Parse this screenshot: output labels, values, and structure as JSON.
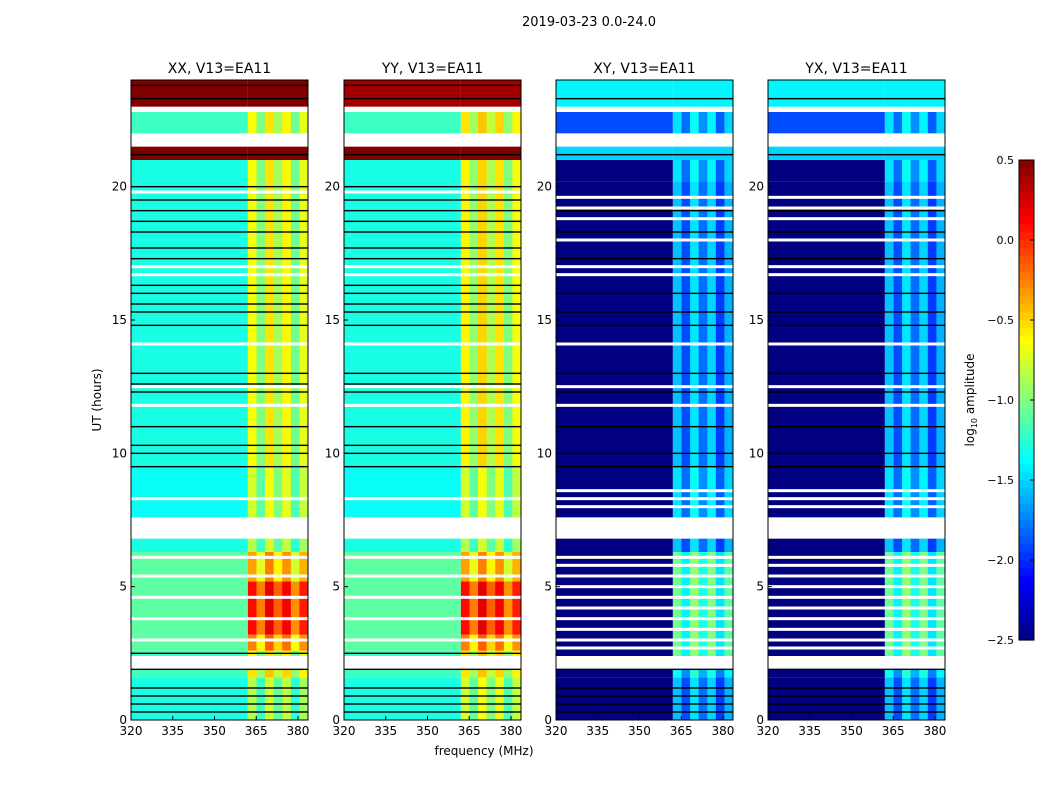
{
  "chart_data": {
    "type": "heatmap",
    "title": "2019-03-23 0.0-24.0",
    "xlabel": "frequency (MHz)",
    "ylabel": "UT (hours)",
    "xlim": [
      320,
      383.6
    ],
    "ylim": [
      0,
      24
    ],
    "xticks": [
      "320",
      "335",
      "350",
      "365",
      "380"
    ],
    "xtick_values": [
      320,
      335,
      350,
      365,
      380
    ],
    "yticks": [
      "0",
      "5",
      "10",
      "15",
      "20"
    ],
    "ytick_values": [
      0,
      5,
      10,
      15,
      20
    ],
    "colorbar": {
      "label": "log10 amplitude",
      "label_main": "log",
      "label_sub": "10",
      "label_rest": " amplitude",
      "range": [
        -2.5,
        0.5
      ],
      "ticks": [
        "0.5",
        "0.0",
        "−0.5",
        "−1.0",
        "−1.5",
        "−2.0",
        "−2.5"
      ],
      "tick_values": [
        0.5,
        0,
        -0.5,
        -1,
        -1.5,
        -2,
        -2.5
      ],
      "colormap": "jet"
    },
    "high_band_start_mhz": 362,
    "column_offsets": [
      0.15,
      -0.2,
      0.25,
      -0.1,
      0.2,
      -0.25,
      0.1
    ],
    "panels": [
      {
        "title": "XX, V13=EA11",
        "bands": [
          [
            0,
            1.6,
            -1.3,
            -1.0
          ],
          [
            1.6,
            1.9,
            -1.2,
            -0.7
          ],
          [
            1.9,
            2.4,
            null,
            null
          ],
          [
            2.4,
            2.6,
            -1.2,
            -0.8
          ],
          [
            2.6,
            3.2,
            -1.1,
            -0.4
          ],
          [
            3.2,
            5.2,
            -1.1,
            -0.05
          ],
          [
            5.2,
            6.3,
            -1.1,
            -0.5
          ],
          [
            6.3,
            6.8,
            -1.3,
            -1.0
          ],
          [
            6.8,
            7.6,
            null,
            null
          ],
          [
            7.6,
            9.5,
            -1.35,
            -0.9
          ],
          [
            9.5,
            21,
            -1.3,
            -0.8
          ],
          [
            21,
            21.5,
            0.5,
            0.5
          ],
          [
            21.5,
            22,
            null,
            null
          ],
          [
            22,
            22.8,
            -1.2,
            -0.8
          ],
          [
            22.8,
            23,
            null,
            null
          ],
          [
            23,
            24,
            0.5,
            0.5
          ]
        ],
        "black_lines": [
          0.3,
          0.6,
          0.9,
          1.2,
          1.9,
          2.5,
          9.5,
          10,
          10.3,
          11,
          12.3,
          12.6,
          13,
          14.8,
          15.3,
          15.6,
          16,
          16.3,
          17.3,
          17.7,
          18.3,
          18.7,
          19.1,
          19.5,
          20,
          21.2,
          23.3,
          23.8
        ],
        "white_lines": [
          2.2,
          3.0,
          3.8,
          4.6,
          5.4,
          6.1,
          7.0,
          7.3,
          8.3,
          11.8,
          12.5,
          14.1,
          16.7,
          17.0,
          19.8
        ]
      },
      {
        "title": "YY, V13=EA11",
        "bands": [
          [
            0,
            1.6,
            -1.3,
            -0.9
          ],
          [
            1.6,
            1.9,
            -1.2,
            -0.7
          ],
          [
            1.9,
            2.4,
            null,
            null
          ],
          [
            2.4,
            2.6,
            -1.2,
            -0.7
          ],
          [
            2.6,
            3.2,
            -1.1,
            -0.4
          ],
          [
            3.2,
            5.2,
            -1.1,
            -0.05
          ],
          [
            5.2,
            6.3,
            -1.1,
            -0.5
          ],
          [
            6.3,
            6.8,
            -1.3,
            -1.0
          ],
          [
            6.8,
            7.6,
            null,
            null
          ],
          [
            7.6,
            9.5,
            -1.35,
            -0.9
          ],
          [
            9.5,
            21,
            -1.3,
            -0.75
          ],
          [
            21,
            21.5,
            0.5,
            0.5
          ],
          [
            21.5,
            22,
            null,
            null
          ],
          [
            22,
            22.8,
            -1.2,
            -0.7
          ],
          [
            22.8,
            23,
            null,
            null
          ],
          [
            23,
            24,
            0.4,
            0.4
          ]
        ],
        "black_lines": [
          0.3,
          0.6,
          0.9,
          1.2,
          1.9,
          2.5,
          9.5,
          10,
          10.3,
          11,
          12.3,
          12.6,
          13,
          14.8,
          15.3,
          15.6,
          16,
          16.3,
          17.3,
          17.7,
          18.3,
          18.7,
          19.1,
          19.5,
          20,
          21.2,
          23.3,
          23.8
        ],
        "white_lines": [
          2.2,
          3.0,
          3.8,
          4.6,
          5.4,
          6.1,
          7.0,
          7.3,
          8.3,
          11.8,
          12.5,
          14.1,
          16.7,
          17.0,
          19.8
        ]
      },
      {
        "title": "XY, V13=EA11",
        "bands": [
          [
            0,
            1.6,
            -2.5,
            -1.7
          ],
          [
            1.6,
            1.9,
            -2.5,
            -1.5
          ],
          [
            1.9,
            2.4,
            null,
            null
          ],
          [
            2.4,
            6.3,
            -2.5,
            -1.2
          ],
          [
            6.3,
            6.8,
            -2.5,
            -1.7
          ],
          [
            6.8,
            7.6,
            null,
            null
          ],
          [
            7.6,
            9.5,
            -2.5,
            -1.6
          ],
          [
            9.5,
            20.2,
            -2.5,
            -1.7
          ],
          [
            20.2,
            21,
            -2.5,
            -1.6
          ],
          [
            21,
            21.5,
            -1.5,
            -1.5
          ],
          [
            21.5,
            22,
            null,
            null
          ],
          [
            22,
            22.8,
            -1.9,
            -1.6
          ],
          [
            22.8,
            23,
            null,
            null
          ],
          [
            23,
            24,
            -1.4,
            -1.4
          ]
        ],
        "black_lines": [
          0.3,
          0.6,
          0.9,
          1.2,
          1.9,
          9.5,
          10,
          11,
          12.3,
          13,
          14.8,
          15.3,
          16,
          17.3,
          18.3,
          19.1,
          21.2,
          23.3
        ],
        "white_lines": [
          2.0,
          2.7,
          3.0,
          3.4,
          3.8,
          4.2,
          4.6,
          5.0,
          5.4,
          5.8,
          6.1,
          7.0,
          7.3,
          8.0,
          8.3,
          8.6,
          11.8,
          12.5,
          14.1,
          16.7,
          17.0,
          18.0,
          18.8,
          19.2,
          19.6,
          21.6
        ]
      },
      {
        "title": "YX, V13=EA11",
        "bands": [
          [
            0,
            1.6,
            -2.5,
            -1.7
          ],
          [
            1.6,
            1.9,
            -2.5,
            -1.5
          ],
          [
            1.9,
            2.4,
            null,
            null
          ],
          [
            2.4,
            6.3,
            -2.5,
            -1.2
          ],
          [
            6.3,
            6.8,
            -2.5,
            -1.7
          ],
          [
            6.8,
            7.6,
            null,
            null
          ],
          [
            7.6,
            9.5,
            -2.5,
            -1.6
          ],
          [
            9.5,
            20.2,
            -2.5,
            -1.7
          ],
          [
            20.2,
            21,
            -2.5,
            -1.6
          ],
          [
            21,
            21.5,
            -1.5,
            -1.5
          ],
          [
            21.5,
            22,
            null,
            null
          ],
          [
            22,
            22.8,
            -1.9,
            -1.6
          ],
          [
            22.8,
            23,
            null,
            null
          ],
          [
            23,
            24,
            -1.4,
            -1.4
          ]
        ],
        "black_lines": [
          0.3,
          0.6,
          0.9,
          1.2,
          1.9,
          9.5,
          10,
          11,
          12.3,
          13,
          14.8,
          15.3,
          16,
          17.3,
          18.3,
          19.1,
          21.2,
          23.3
        ],
        "white_lines": [
          2.0,
          2.7,
          3.0,
          3.4,
          3.8,
          4.2,
          4.6,
          5.0,
          5.4,
          5.8,
          6.1,
          7.0,
          7.3,
          8.0,
          8.3,
          8.6,
          11.8,
          12.5,
          14.1,
          16.7,
          17.0,
          18.0,
          18.8,
          19.2,
          19.6,
          21.6
        ]
      }
    ]
  }
}
